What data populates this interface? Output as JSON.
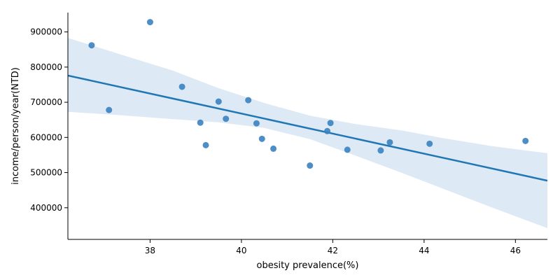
{
  "chart_data": {
    "type": "scatter",
    "title": "",
    "xlabel": "obesity prevalence(%)",
    "ylabel": "income/person/year(NTD)",
    "xlim": [
      36.2,
      46.7
    ],
    "ylim": [
      310000,
      955000
    ],
    "xticks": [
      38,
      40,
      42,
      44,
      46
    ],
    "xtick_labels": [
      "38",
      "40",
      "42",
      "44",
      "46"
    ],
    "yticks": [
      400000,
      500000,
      600000,
      700000,
      800000,
      900000
    ],
    "ytick_labels": [
      "400000",
      "500000",
      "600000",
      "700000",
      "800000",
      "900000"
    ],
    "grid": false,
    "colors": {
      "points": "#3a82c0",
      "line": "#1f77b4",
      "band": "#c6dbef"
    },
    "points": [
      {
        "x": 36.72,
        "y": 862000
      },
      {
        "x": 37.1,
        "y": 678000
      },
      {
        "x": 38.0,
        "y": 928000
      },
      {
        "x": 38.7,
        "y": 744000
      },
      {
        "x": 39.1,
        "y": 642000
      },
      {
        "x": 39.22,
        "y": 578000
      },
      {
        "x": 39.5,
        "y": 702000
      },
      {
        "x": 39.66,
        "y": 653000
      },
      {
        "x": 40.15,
        "y": 706000
      },
      {
        "x": 40.33,
        "y": 640000
      },
      {
        "x": 40.45,
        "y": 596000
      },
      {
        "x": 40.7,
        "y": 568000
      },
      {
        "x": 41.5,
        "y": 520000
      },
      {
        "x": 41.88,
        "y": 618000
      },
      {
        "x": 41.95,
        "y": 641000
      },
      {
        "x": 42.32,
        "y": 565000
      },
      {
        "x": 43.05,
        "y": 563000
      },
      {
        "x": 43.25,
        "y": 586000
      },
      {
        "x": 44.12,
        "y": 582000
      },
      {
        "x": 46.22,
        "y": 590000
      }
    ],
    "regression": {
      "x": [
        36.2,
        46.7
      ],
      "y": [
        776000,
        477000
      ]
    },
    "confidence_band": {
      "x": [
        36.2,
        37.5,
        38.5,
        39.5,
        40.5,
        41.5,
        42.5,
        43.5,
        44.5,
        45.5,
        46.7
      ],
      "upper": [
        883000,
        830000,
        790000,
        740000,
        698000,
        662000,
        638000,
        620000,
        596000,
        575000,
        555000
      ],
      "lower": [
        673000,
        662000,
        652000,
        643000,
        627000,
        595000,
        548000,
        500000,
        450000,
        400000,
        342000
      ]
    }
  }
}
